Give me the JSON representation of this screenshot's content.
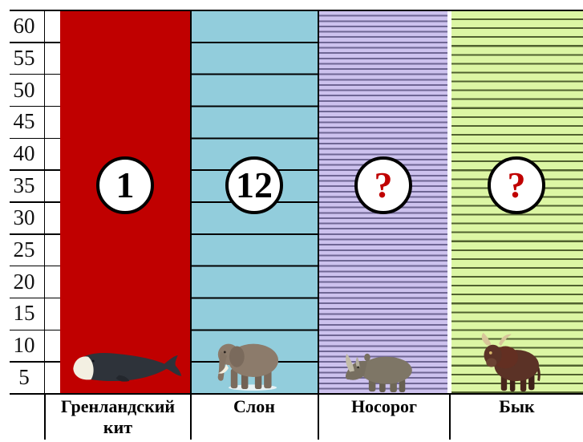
{
  "yaxis": {
    "ticks": [
      "60",
      "55",
      "50",
      "45",
      "40",
      "35",
      "30",
      "25",
      "20",
      "15",
      "10",
      "5"
    ]
  },
  "columns": [
    {
      "label": "Гренландский кит",
      "circle": "1",
      "fill": "#C00000",
      "pattern": "solid",
      "animal": "bowhead-whale",
      "circle_text_color": "#000000"
    },
    {
      "label": "Слон",
      "circle": "12",
      "fill": "#92CDDC",
      "pattern": "gridline-every-5-units",
      "animal": "elephant",
      "circle_text_color": "#000000"
    },
    {
      "label": "Носорог",
      "circle": "?",
      "fill": "#CDC2EE",
      "pattern": "fine-horizontal-stripes",
      "animal": "rhinoceros",
      "circle_text_color": "#C00000"
    },
    {
      "label": "Бык",
      "circle": "?",
      "fill": "#DCF6A4",
      "pattern": "horizontal-stripes",
      "animal": "bull",
      "circle_text_color": "#C00000"
    }
  ],
  "colors": {
    "whale_column_red": "#C00000",
    "elephant_column_blue": "#92CDDC",
    "rhino_column_purple_bg": "#CDC2EE",
    "rhino_stripe_dark": "#6F6694",
    "bull_column_green_bg": "#DCF6A4",
    "bull_stripe_dark": "#51612F",
    "grid_black": "#000000",
    "question_mark_red": "#C00000"
  },
  "chart_data": {
    "type": "bar",
    "title": "",
    "categories": [
      "Гренландский кит",
      "Слон",
      "Носорог",
      "Бык"
    ],
    "circled_values": [
      "1",
      "12",
      "?",
      "?"
    ],
    "yaxis": {
      "tick_labels": [
        60,
        55,
        50,
        45,
        40,
        35,
        30,
        25,
        20,
        15,
        10,
        5
      ],
      "range": [
        0,
        60
      ],
      "step": 5
    },
    "grid": "horizontal black gridlines every 5 units inside the elephant column only",
    "legend_position": "none",
    "columns": [
      {
        "category": "Гренландский кит",
        "fill": "#C00000",
        "segments_shown": 1,
        "note": "solid undivided column, full height (0–60)"
      },
      {
        "category": "Слон",
        "fill": "#92CDDC",
        "segments_shown": 12,
        "note": "column divided into 12 equal segments by lines at every 5 units"
      },
      {
        "category": "Носорог",
        "fill": "#CDC2EE",
        "segments_shown_estimate": 72,
        "note": "column filled with fine dark-purple horizontal stripes (~6.6px period); value unknown (?)"
      },
      {
        "category": "Бык",
        "fill": "#DCF6A4",
        "segments_shown_estimate": 43,
        "note": "column filled with dark-olive horizontal stripes (~11px period); value unknown (?)"
      }
    ]
  }
}
